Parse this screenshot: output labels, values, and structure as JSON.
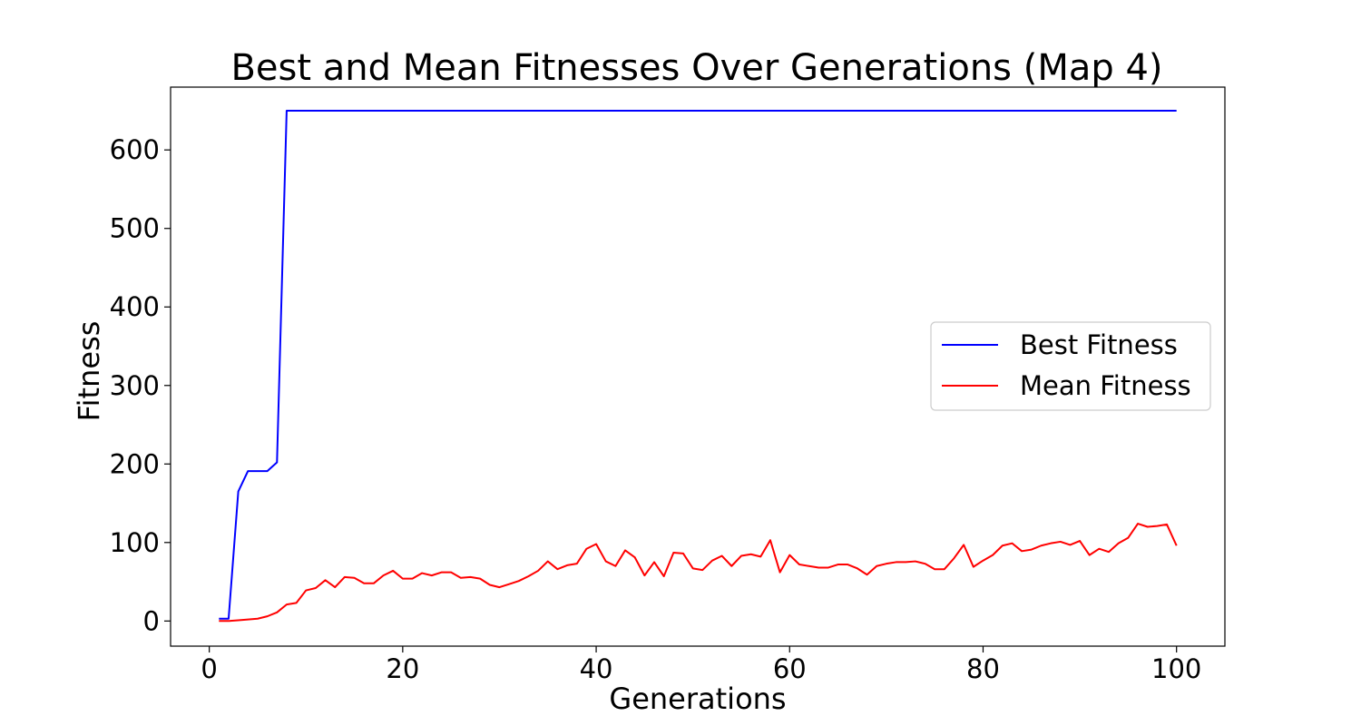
{
  "chart_data": {
    "type": "line",
    "title": "Best and Mean Fitnesses Over Generations (Map 4)",
    "xlabel": "Generations",
    "ylabel": "Fitness",
    "xlim": [
      -4,
      105
    ],
    "ylim": [
      -32,
      680
    ],
    "xticks": [
      0,
      20,
      40,
      60,
      80,
      100
    ],
    "yticks": [
      0,
      100,
      200,
      300,
      400,
      500,
      600
    ],
    "grid": false,
    "legend_position": "center-right",
    "x": [
      1,
      2,
      3,
      4,
      5,
      6,
      7,
      8,
      9,
      10,
      11,
      12,
      13,
      14,
      15,
      16,
      17,
      18,
      19,
      20,
      21,
      22,
      23,
      24,
      25,
      26,
      27,
      28,
      29,
      30,
      31,
      32,
      33,
      34,
      35,
      36,
      37,
      38,
      39,
      40,
      41,
      42,
      43,
      44,
      45,
      46,
      47,
      48,
      49,
      50,
      51,
      52,
      53,
      54,
      55,
      56,
      57,
      58,
      59,
      60,
      61,
      62,
      63,
      64,
      65,
      66,
      67,
      68,
      69,
      70,
      71,
      72,
      73,
      74,
      75,
      76,
      77,
      78,
      79,
      80,
      81,
      82,
      83,
      84,
      85,
      86,
      87,
      88,
      89,
      90,
      91,
      92,
      93,
      94,
      95,
      96,
      97,
      98,
      99,
      100
    ],
    "series": [
      {
        "name": "Best Fitness",
        "color": "#0000ff",
        "values": [
          3,
          3,
          165,
          191,
          191,
          191,
          202,
          650,
          650,
          650,
          650,
          650,
          650,
          650,
          650,
          650,
          650,
          650,
          650,
          650,
          650,
          650,
          650,
          650,
          650,
          650,
          650,
          650,
          650,
          650,
          650,
          650,
          650,
          650,
          650,
          650,
          650,
          650,
          650,
          650,
          650,
          650,
          650,
          650,
          650,
          650,
          650,
          650,
          650,
          650,
          650,
          650,
          650,
          650,
          650,
          650,
          650,
          650,
          650,
          650,
          650,
          650,
          650,
          650,
          650,
          650,
          650,
          650,
          650,
          650,
          650,
          650,
          650,
          650,
          650,
          650,
          650,
          650,
          650,
          650,
          650,
          650,
          650,
          650,
          650,
          650,
          650,
          650,
          650,
          650,
          650,
          650,
          650,
          650,
          650,
          650,
          650,
          650,
          650,
          650
        ]
      },
      {
        "name": "Mean Fitness",
        "color": "#ff0000",
        "values": [
          0,
          0,
          1,
          2,
          3,
          6,
          11,
          21,
          23,
          39,
          42,
          52,
          43,
          56,
          55,
          48,
          48,
          58,
          64,
          54,
          54,
          61,
          58,
          62,
          62,
          55,
          56,
          54,
          46,
          43,
          47,
          51,
          57,
          64,
          76,
          66,
          71,
          73,
          92,
          98,
          76,
          70,
          90,
          81,
          58,
          75,
          57,
          87,
          86,
          67,
          65,
          77,
          83,
          70,
          83,
          85,
          82,
          103,
          62,
          84,
          72,
          70,
          68,
          68,
          72,
          72,
          67,
          59,
          70,
          73,
          75,
          75,
          76,
          73,
          66,
          66,
          80,
          97,
          69,
          77,
          84,
          96,
          99,
          89,
          91,
          96,
          99,
          101,
          97,
          102,
          84,
          92,
          88,
          99,
          106,
          124,
          120,
          121,
          123,
          96
        ]
      }
    ]
  }
}
